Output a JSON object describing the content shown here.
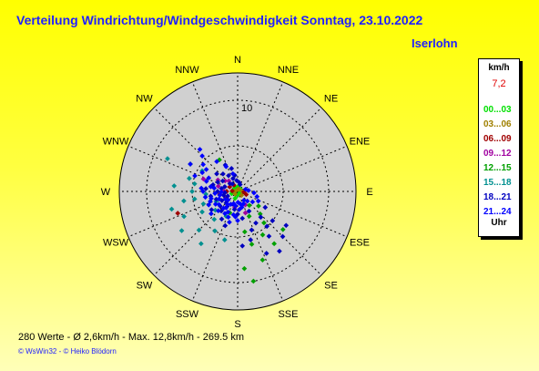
{
  "header": {
    "title": "Verteilung Windrichtung/Windgeschwindigkeit  Sonntag, 23.10.2022",
    "location": "Iserlohn"
  },
  "legend": {
    "unit": "km/h",
    "max_value": "7,2",
    "hours": [
      {
        "label": "00...03",
        "color": "#00e000"
      },
      {
        "label": "03...06",
        "color": "#a08000"
      },
      {
        "label": "06...09",
        "color": "#a00000"
      },
      {
        "label": "09...12",
        "color": "#a000a0"
      },
      {
        "label": "12...15",
        "color": "#00a000"
      },
      {
        "label": "15...18",
        "color": "#009090"
      },
      {
        "label": "18...21",
        "color": "#0000c0"
      },
      {
        "label": "21...24",
        "color": "#0000ff"
      }
    ],
    "footer_label": "Uhr"
  },
  "footer": {
    "stats": "280 Werte   -   Ø 2,6km/h  -  Max. 12,8km/h   -   269.5 km",
    "credits": "© WsWin32  -  © Heiko Blödorn"
  },
  "chart_data": {
    "type": "scatter",
    "projection": "polar",
    "radial_axis": {
      "unit": "km/h",
      "max": 13,
      "rings": [
        5,
        10
      ],
      "ring_labels": [
        "10"
      ]
    },
    "directions": [
      "N",
      "NNE",
      "NE",
      "ENE",
      "E",
      "ESE",
      "SE",
      "SSE",
      "S",
      "SSW",
      "SW",
      "WSW",
      "W",
      "WNW",
      "NW",
      "NNW"
    ],
    "series": [
      {
        "color": "#00e000",
        "points": [
          [
            0,
            0.5
          ],
          [
            45,
            0.4
          ],
          [
            90,
            0.3
          ],
          [
            180,
            0.4
          ],
          [
            270,
            0.6
          ],
          [
            315,
            0.5
          ],
          [
            200,
            0.8
          ],
          [
            250,
            0.7
          ],
          [
            120,
            0.3
          ],
          [
            300,
            0.4
          ]
        ]
      },
      {
        "color": "#a08000",
        "points": [
          [
            270,
            0.3
          ],
          [
            90,
            0.5
          ],
          [
            0,
            0.2
          ],
          [
            225,
            0.4
          ],
          [
            135,
            0.6
          ],
          [
            30,
            0.3
          ]
        ]
      },
      {
        "color": "#a00000",
        "points": [
          [
            250,
            7.0
          ],
          [
            270,
            1.2
          ],
          [
            260,
            2.0
          ],
          [
            300,
            1.0
          ],
          [
            240,
            1.5
          ],
          [
            330,
            0.8
          ],
          [
            275,
            0.6
          ],
          [
            95,
            0.7
          ],
          [
            110,
            1.0
          ]
        ]
      },
      {
        "color": "#a000a0",
        "points": [
          [
            290,
            4.0
          ],
          [
            280,
            3.0
          ],
          [
            300,
            2.5
          ],
          [
            310,
            1.8
          ],
          [
            270,
            1.5
          ],
          [
            150,
            1.7
          ],
          [
            160,
            2.5
          ],
          [
            190,
            1.8
          ],
          [
            320,
            1.5
          ],
          [
            285,
            2.2
          ]
        ]
      },
      {
        "color": "#00a000",
        "points": [
          [
            140,
            4.5
          ],
          [
            150,
            5.5
          ],
          [
            165,
            6.0
          ],
          [
            170,
            10.0
          ],
          [
            160,
            8.0
          ],
          [
            130,
            6.5
          ],
          [
            135,
            3.5
          ],
          [
            145,
            7.0
          ],
          [
            175,
            8.5
          ],
          [
            125,
            2.8
          ],
          [
            300,
            6.0
          ],
          [
            330,
            4.0
          ],
          [
            155,
            3.0
          ],
          [
            170,
            4.5
          ],
          [
            140,
            2.0
          ],
          [
            200,
            2.5
          ]
        ]
      },
      {
        "color": "#009090",
        "points": [
          [
            295,
            8.5
          ],
          [
            275,
            7.0
          ],
          [
            260,
            6.0
          ],
          [
            245,
            6.5
          ],
          [
            235,
            7.5
          ],
          [
            225,
            6.0
          ],
          [
            250,
            4.0
          ],
          [
            265,
            3.5
          ],
          [
            280,
            4.8
          ],
          [
            210,
            5.0
          ],
          [
            205,
            3.0
          ],
          [
            230,
            3.2
          ],
          [
            255,
            7.5
          ],
          [
            240,
            4.5
          ],
          [
            285,
            5.5
          ],
          [
            215,
            7.0
          ],
          [
            195,
            5.5
          ],
          [
            270,
            5.0
          ],
          [
            300,
            4.5
          ],
          [
            220,
            4.0
          ],
          [
            245,
            2.6
          ],
          [
            260,
            4.8
          ]
        ]
      },
      {
        "color": "#0000c0",
        "points": [
          [
            145,
            6.0
          ],
          [
            150,
            4.0
          ],
          [
            140,
            5.0
          ],
          [
            130,
            5.0
          ],
          [
            160,
            4.5
          ],
          [
            200,
            4.0
          ],
          [
            210,
            3.5
          ],
          [
            220,
            2.8
          ],
          [
            230,
            2.5
          ],
          [
            240,
            2.0
          ],
          [
            250,
            2.5
          ],
          [
            260,
            3.0
          ],
          [
            270,
            2.2
          ],
          [
            280,
            1.8
          ],
          [
            290,
            1.5
          ],
          [
            310,
            3.0
          ],
          [
            320,
            2.5
          ],
          [
            330,
            2.0
          ],
          [
            340,
            1.5
          ],
          [
            170,
            3.0
          ],
          [
            180,
            2.5
          ],
          [
            190,
            2.0
          ],
          [
            200,
            1.5
          ],
          [
            120,
            3.5
          ],
          [
            135,
            7.0
          ],
          [
            145,
            8.0
          ],
          [
            125,
            6.5
          ],
          [
            155,
            7.5
          ],
          [
            165,
            5.5
          ],
          [
            175,
            6.0
          ],
          [
            150,
            2.5
          ],
          [
            138,
            3.8
          ],
          [
            215,
            2.0
          ],
          [
            225,
            1.8
          ],
          [
            235,
            3.5
          ],
          [
            245,
            1.2
          ],
          [
            255,
            1.6
          ],
          [
            265,
            1.4
          ],
          [
            275,
            3.5
          ],
          [
            285,
            2.8
          ],
          [
            295,
            2.4
          ],
          [
            305,
            2.0
          ],
          [
            315,
            1.2
          ],
          [
            325,
            1.0
          ],
          [
            335,
            3.2
          ],
          [
            345,
            2.6
          ],
          [
            350,
            1.8
          ],
          [
            355,
            1.2
          ],
          [
            10,
            1.0
          ],
          [
            20,
            0.8
          ]
        ]
      },
      {
        "color": "#0000ff",
        "points": [
          [
            265,
            2.5
          ],
          [
            280,
            3.0
          ],
          [
            295,
            3.5
          ],
          [
            305,
            4.2
          ],
          [
            315,
            5.5
          ],
          [
            325,
            4.0
          ],
          [
            335,
            3.0
          ],
          [
            345,
            2.0
          ],
          [
            300,
            6.0
          ],
          [
            290,
            5.0
          ],
          [
            275,
            4.0
          ],
          [
            255,
            3.0
          ],
          [
            245,
            3.5
          ],
          [
            235,
            2.5
          ],
          [
            225,
            3.0
          ],
          [
            215,
            2.2
          ],
          [
            205,
            2.5
          ],
          [
            195,
            3.5
          ],
          [
            185,
            2.8
          ],
          [
            175,
            2.0
          ],
          [
            165,
            1.8
          ],
          [
            155,
            1.5
          ],
          [
            145,
            1.2
          ],
          [
            135,
            1.5
          ],
          [
            125,
            2.0
          ],
          [
            115,
            2.5
          ],
          [
            105,
            2.2
          ],
          [
            95,
            1.8
          ],
          [
            85,
            1.2
          ],
          [
            75,
            0.9
          ],
          [
            270,
            3.8
          ],
          [
            260,
            3.6
          ],
          [
            250,
            3.2
          ],
          [
            240,
            2.8
          ],
          [
            230,
            3.8
          ],
          [
            220,
            2.4
          ],
          [
            210,
            2.8
          ],
          [
            200,
            3.0
          ],
          [
            190,
            2.6
          ],
          [
            180,
            3.2
          ],
          [
            318,
            6.2
          ],
          [
            308,
            4.8
          ],
          [
            298,
            4.4
          ],
          [
            288,
            3.6
          ],
          [
            278,
            2.6
          ],
          [
            268,
            1.8
          ],
          [
            258,
            2.0
          ],
          [
            248,
            2.2
          ],
          [
            238,
            1.6
          ],
          [
            228,
            1.4
          ],
          [
            218,
            1.8
          ],
          [
            208,
            1.6
          ],
          [
            198,
            1.4
          ],
          [
            188,
            1.6
          ],
          [
            178,
            1.2
          ],
          [
            168,
            1.4
          ]
        ]
      }
    ]
  }
}
